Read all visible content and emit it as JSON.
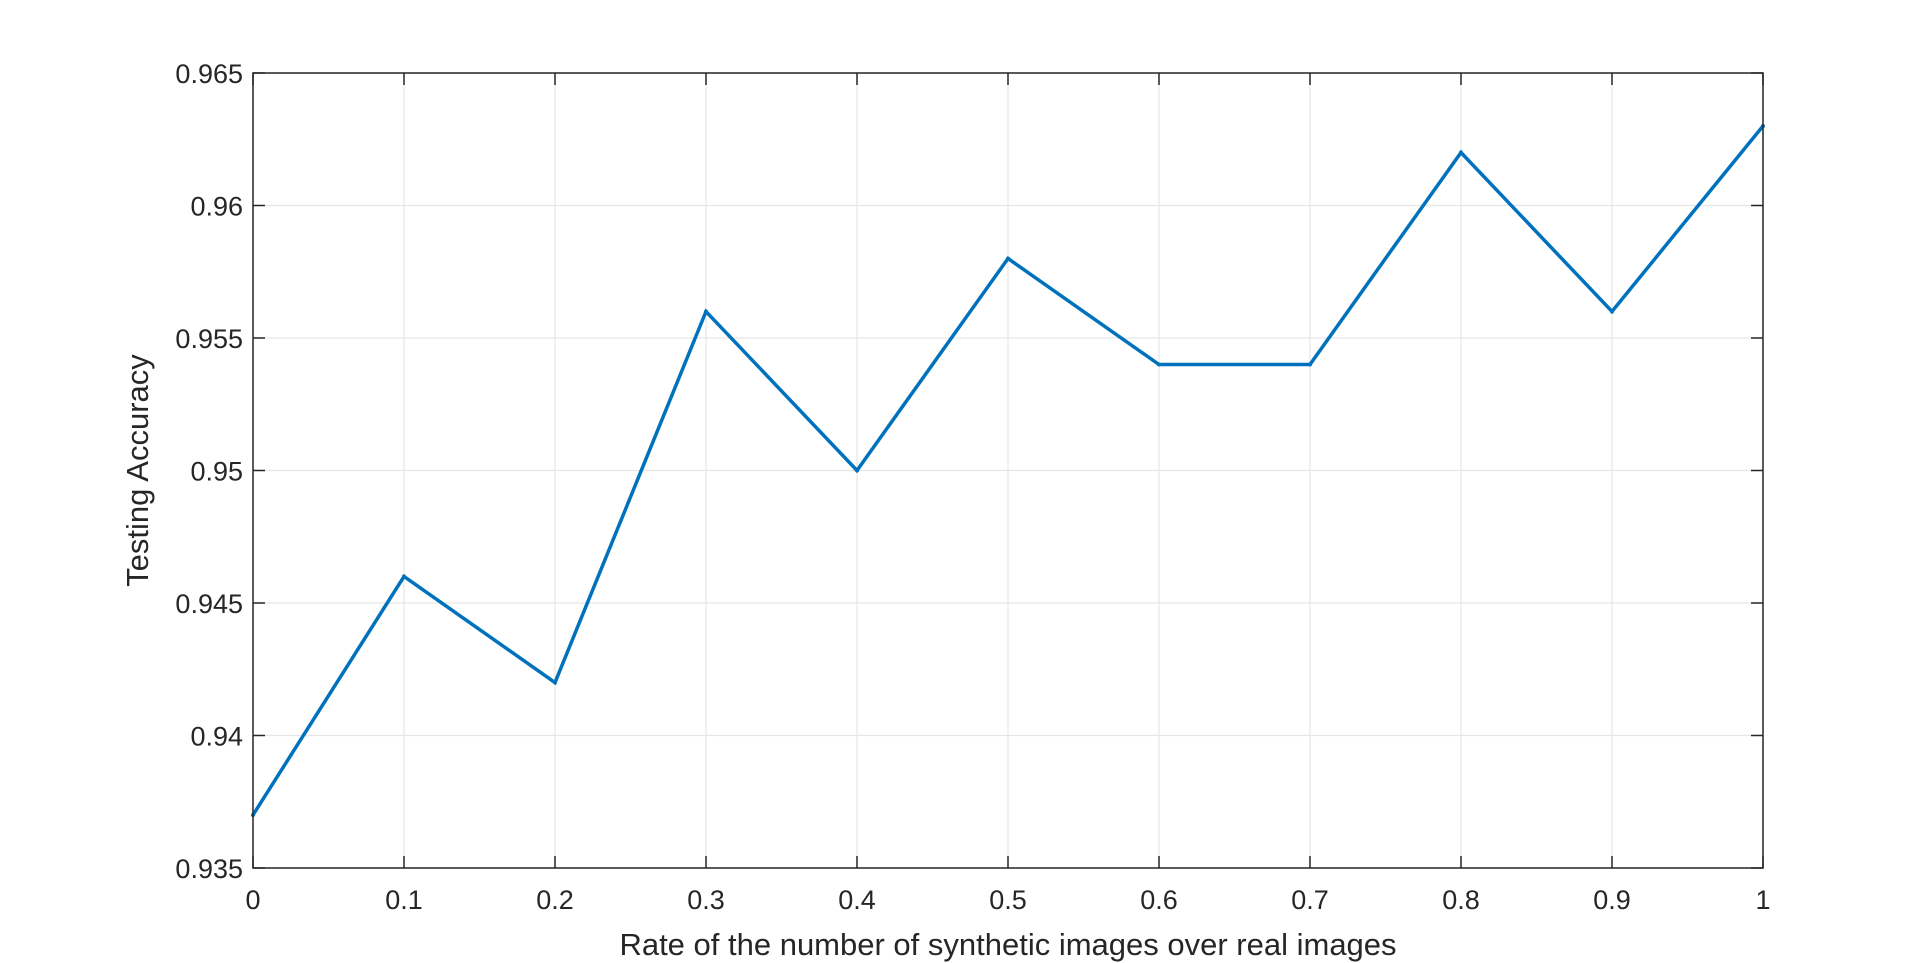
{
  "chart_data": {
    "type": "line",
    "title": "",
    "xlabel": "Rate of the number of synthetic images over real images",
    "ylabel": "Testing Accuracy",
    "xlim": [
      0,
      1
    ],
    "ylim": [
      0.935,
      0.965
    ],
    "x_ticks": [
      0,
      0.1,
      0.2,
      0.3,
      0.4,
      0.5,
      0.6,
      0.7,
      0.8,
      0.9,
      1
    ],
    "x_tick_labels": [
      "0",
      "0.1",
      "0.2",
      "0.3",
      "0.4",
      "0.5",
      "0.6",
      "0.7",
      "0.8",
      "0.9",
      "1"
    ],
    "y_ticks": [
      0.935,
      0.94,
      0.945,
      0.95,
      0.955,
      0.96,
      0.965
    ],
    "y_tick_labels": [
      "0.935",
      "0.94",
      "0.945",
      "0.95",
      "0.955",
      "0.96",
      "0.965"
    ],
    "grid": true,
    "series": [
      {
        "color": "#0072BD",
        "x": [
          0,
          0.1,
          0.2,
          0.3,
          0.4,
          0.5,
          0.6,
          0.7,
          0.8,
          0.9,
          1
        ],
        "y": [
          0.937,
          0.946,
          0.942,
          0.956,
          0.95,
          0.958,
          0.954,
          0.954,
          0.962,
          0.956,
          0.963
        ]
      }
    ]
  }
}
